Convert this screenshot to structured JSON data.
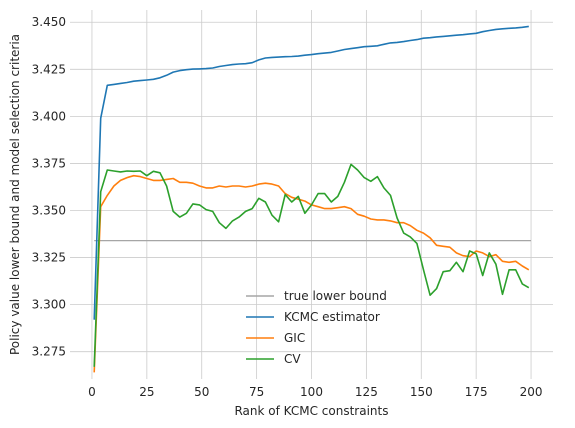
{
  "chart_data": {
    "type": "line",
    "xlabel": "Rank of KCMC constraints",
    "ylabel": "Policy value lower bound and model selection criteria",
    "xlim": [
      -10,
      210
    ],
    "ylim": [
      3.2605,
      3.4565
    ],
    "xticks": [
      0,
      25,
      50,
      75,
      100,
      125,
      150,
      175,
      200
    ],
    "yticks": [
      3.275,
      3.3,
      3.325,
      3.35,
      3.375,
      3.4,
      3.425,
      3.45
    ],
    "xtick_labels": [
      "0",
      "25",
      "50",
      "75",
      "100",
      "125",
      "150",
      "175",
      "200"
    ],
    "ytick_labels": [
      "3.275",
      "3.300",
      "3.325",
      "3.350",
      "3.375",
      "3.400",
      "3.425",
      "3.450"
    ],
    "grid": true,
    "legend_position": "lower center",
    "series": [
      {
        "name": "true lower bound",
        "color": "#a6a6a6",
        "x": [
          1,
          200
        ],
        "y": [
          3.334,
          3.334
        ]
      },
      {
        "name": "KCMC estimator",
        "color": "#1f77b4",
        "x": [
          1,
          4,
          7,
          10,
          13,
          16,
          19,
          22,
          25,
          28,
          31,
          34,
          37,
          40,
          43,
          46,
          49,
          52,
          55,
          58,
          61,
          64,
          67,
          70,
          73,
          76,
          79,
          82,
          85,
          88,
          91,
          94,
          97,
          100,
          103,
          106,
          109,
          112,
          115,
          118,
          121,
          124,
          127,
          130,
          133,
          136,
          139,
          142,
          145,
          148,
          151,
          154,
          157,
          160,
          163,
          166,
          169,
          172,
          175,
          178,
          181,
          184,
          187,
          190,
          193,
          196,
          199
        ],
        "y": [
          3.292,
          3.399,
          3.4165,
          3.417,
          3.4175,
          3.418,
          3.4187,
          3.419,
          3.4193,
          3.4197,
          3.4205,
          3.4218,
          3.4235,
          3.4243,
          3.4248,
          3.4251,
          3.4252,
          3.4254,
          3.4257,
          3.4265,
          3.427,
          3.4275,
          3.4278,
          3.428,
          3.4285,
          3.43,
          3.431,
          3.4313,
          3.4315,
          3.4317,
          3.4318,
          3.432,
          3.4325,
          3.4328,
          3.4333,
          3.4336,
          3.434,
          3.4347,
          3.4355,
          3.436,
          3.4365,
          3.437,
          3.4372,
          3.4375,
          3.4383,
          3.439,
          3.4393,
          3.4397,
          3.4403,
          3.4408,
          3.4415,
          3.4418,
          3.4422,
          3.4425,
          3.4428,
          3.4431,
          3.4434,
          3.4438,
          3.4441,
          3.445,
          3.4456,
          3.4462,
          3.4465,
          3.4468,
          3.447,
          3.4473,
          3.4478
        ]
      },
      {
        "name": "GIC",
        "color": "#ff7f0e",
        "x": [
          1,
          4,
          7,
          10,
          13,
          16,
          19,
          22,
          25,
          28,
          31,
          34,
          37,
          40,
          43,
          46,
          49,
          52,
          55,
          58,
          61,
          64,
          67,
          70,
          73,
          76,
          79,
          82,
          85,
          88,
          91,
          94,
          97,
          100,
          103,
          106,
          109,
          112,
          115,
          118,
          121,
          124,
          127,
          130,
          133,
          136,
          139,
          142,
          145,
          148,
          151,
          154,
          157,
          160,
          163,
          166,
          169,
          172,
          175,
          178,
          181,
          184,
          187,
          190,
          193,
          196,
          199
        ],
        "y": [
          3.264,
          3.352,
          3.358,
          3.363,
          3.366,
          3.3675,
          3.3685,
          3.368,
          3.367,
          3.366,
          3.366,
          3.3665,
          3.367,
          3.365,
          3.365,
          3.3645,
          3.363,
          3.362,
          3.362,
          3.363,
          3.3625,
          3.363,
          3.363,
          3.3625,
          3.363,
          3.364,
          3.3645,
          3.364,
          3.363,
          3.359,
          3.357,
          3.356,
          3.355,
          3.353,
          3.352,
          3.351,
          3.351,
          3.3515,
          3.352,
          3.351,
          3.348,
          3.347,
          3.3455,
          3.345,
          3.345,
          3.3445,
          3.3435,
          3.3435,
          3.342,
          3.3395,
          3.338,
          3.3355,
          3.3315,
          3.331,
          3.3305,
          3.3275,
          3.326,
          3.3255,
          3.3285,
          3.3275,
          3.3255,
          3.3265,
          3.323,
          3.3225,
          3.323,
          3.3205,
          3.3185
        ]
      },
      {
        "name": "CV",
        "color": "#2ca02c",
        "x": [
          1,
          4,
          7,
          10,
          13,
          16,
          19,
          22,
          25,
          28,
          31,
          34,
          37,
          40,
          43,
          46,
          49,
          52,
          55,
          58,
          61,
          64,
          67,
          70,
          73,
          76,
          79,
          82,
          85,
          88,
          91,
          94,
          97,
          100,
          103,
          106,
          109,
          112,
          115,
          118,
          121,
          124,
          127,
          130,
          133,
          136,
          139,
          142,
          145,
          148,
          151,
          154,
          157,
          160,
          163,
          166,
          169,
          172,
          175,
          178,
          181,
          184,
          187,
          190,
          193,
          196,
          199
        ],
        "y": [
          3.267,
          3.36,
          3.3715,
          3.371,
          3.3705,
          3.371,
          3.3708,
          3.371,
          3.3685,
          3.3708,
          3.37,
          3.363,
          3.3495,
          3.3465,
          3.3485,
          3.3535,
          3.353,
          3.3505,
          3.3495,
          3.3435,
          3.3405,
          3.3445,
          3.3465,
          3.3495,
          3.351,
          3.3565,
          3.3545,
          3.3475,
          3.344,
          3.3585,
          3.3545,
          3.3575,
          3.3485,
          3.353,
          3.359,
          3.359,
          3.3545,
          3.3575,
          3.365,
          3.3745,
          3.3715,
          3.3675,
          3.3655,
          3.368,
          3.362,
          3.358,
          3.346,
          3.338,
          3.336,
          3.3325,
          3.3185,
          3.305,
          3.3085,
          3.3175,
          3.318,
          3.3225,
          3.3175,
          3.3285,
          3.327,
          3.3155,
          3.3275,
          3.3215,
          3.3055,
          3.3185,
          3.3185,
          3.311,
          3.309
        ]
      }
    ]
  }
}
